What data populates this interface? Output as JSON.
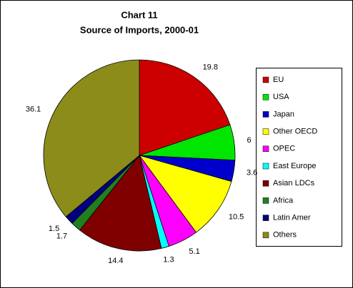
{
  "chart_data": {
    "type": "pie",
    "title": "Chart 11",
    "subtitle": "Source of Imports, 2000-01",
    "categories": [
      "EU",
      "USA",
      "Japan",
      "Other OECD",
      "OPEC",
      "East Europe",
      "Asian LDCs",
      "Africa",
      "Latin Amer",
      "Others"
    ],
    "values": [
      19.8,
      6,
      3.6,
      10.5,
      5.1,
      1.3,
      14.4,
      1.7,
      1.5,
      36.1
    ],
    "colors": [
      "#cc0000",
      "#00e600",
      "#0000cc",
      "#ffff00",
      "#ff00ff",
      "#00ffff",
      "#800000",
      "#208020",
      "#000080",
      "#8c8c1a"
    ],
    "legend": "right"
  }
}
